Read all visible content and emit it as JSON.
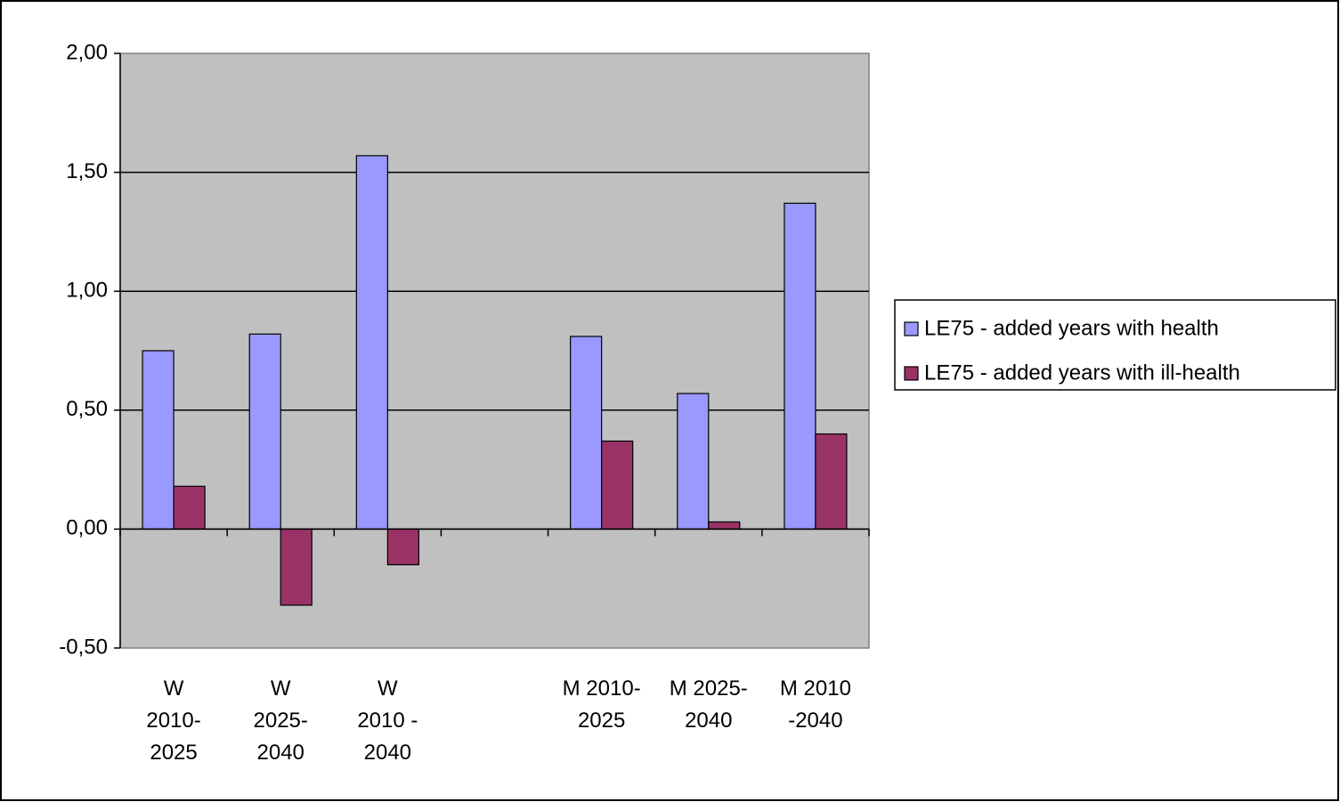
{
  "chart_data": {
    "type": "bar",
    "categories": [
      "W\n2010-\n2025",
      "W\n2025-\n2040",
      "W\n2010 -\n2040",
      null,
      "M 2010-\n2025",
      "M 2025-\n2040",
      "M  2010\n-2040"
    ],
    "series": [
      {
        "name": "LE75 - added years with health",
        "color": "#9999ff",
        "values": [
          0.75,
          0.82,
          1.57,
          null,
          0.81,
          0.57,
          1.37
        ]
      },
      {
        "name": "LE75 - added years with ill-health",
        "color": "#993366",
        "values": [
          0.18,
          -0.32,
          -0.15,
          null,
          0.37,
          0.03,
          0.4
        ]
      }
    ],
    "ylim": [
      -0.5,
      2.0
    ],
    "yticks": [
      {
        "value": -0.5,
        "label": "-0,50"
      },
      {
        "value": 0,
        "label": "0,00"
      },
      {
        "value": 0.5,
        "label": "0,50"
      },
      {
        "value": 1.0,
        "label": "1,00"
      },
      {
        "value": 1.5,
        "label": "1,50"
      },
      {
        "value": 2.0,
        "label": "2,00"
      }
    ],
    "grid": true,
    "legend": "right"
  }
}
